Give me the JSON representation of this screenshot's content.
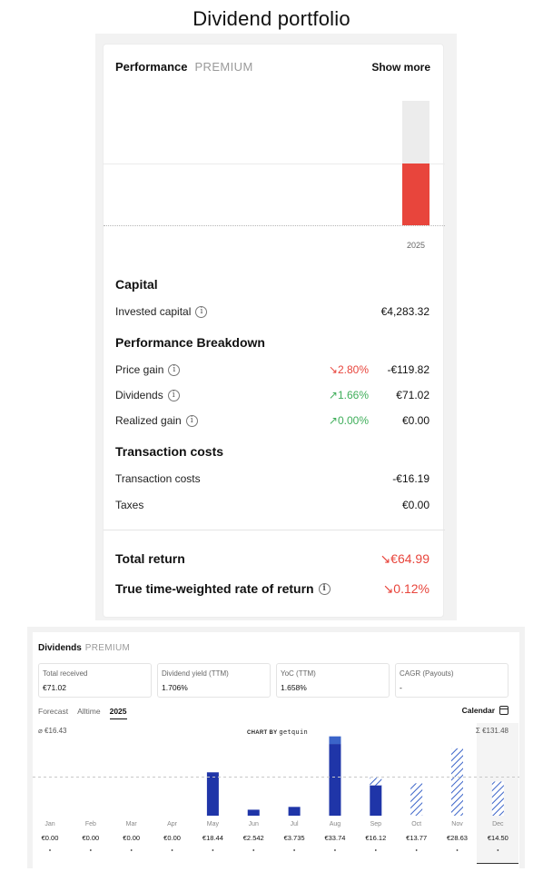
{
  "page_title": "Dividend portfolio",
  "performance": {
    "title": "Performance",
    "badge": "PREMIUM",
    "show_more": "Show more",
    "chart_year": "2025",
    "capital_heading": "Capital",
    "invested_capital_label": "Invested capital",
    "invested_capital_value": "€4,283.32",
    "breakdown_heading": "Performance Breakdown",
    "price_gain_label": "Price gain",
    "price_gain_pct": "↘2.80%",
    "price_gain_value": "-€119.82",
    "dividends_label": "Dividends",
    "dividends_pct": "↗1.66%",
    "dividends_value": "€71.02",
    "realized_gain_label": "Realized gain",
    "realized_gain_pct": "↗0.00%",
    "realized_gain_value": "€0.00",
    "tx_heading": "Transaction costs",
    "tx_costs_label": "Transaction costs",
    "tx_costs_value": "-€16.19",
    "taxes_label": "Taxes",
    "taxes_value": "€0.00",
    "total_return_label": "Total return",
    "total_return_value": "↘€64.99",
    "ttwror_label": "True time-weighted rate of return",
    "ttwror_value": "↘0.12%",
    "colors": {
      "negative": "#e8453c",
      "positive": "#3fae5a",
      "bar_red": "#e8453c",
      "bar_bg": "#ececec"
    }
  },
  "dividends": {
    "title": "Dividends",
    "badge": "PREMIUM",
    "stats": [
      {
        "label": "Total received",
        "value": "€71.02"
      },
      {
        "label": "Dividend yield (TTM)",
        "value": "1.706%"
      },
      {
        "label": "YoC (TTM)",
        "value": "1.658%"
      },
      {
        "label": "CAGR (Payouts)",
        "value": "-"
      }
    ],
    "tabs": [
      "Forecast",
      "Alltime",
      "2025"
    ],
    "active_tab": "2025",
    "calendar_label": "Calendar",
    "average_label": "⌀ €16.43",
    "chart_by_label": "CHART BY",
    "chart_by_brand": "getquin",
    "sum_label": "Σ €131.48",
    "icons": [
      "info-icon",
      "calendar-icon"
    ]
  },
  "chart_data": {
    "type": "bar",
    "categories": [
      "Jan",
      "Feb",
      "Mar",
      "Apr",
      "May",
      "Jun",
      "Jul",
      "Aug",
      "Sep",
      "Oct",
      "Nov",
      "Dec"
    ],
    "value_labels": [
      "€0.00",
      "€0.00",
      "€0.00",
      "€0.00",
      "€18.44",
      "€2.542",
      "€3.735",
      "€33.74",
      "€16.12",
      "€13.77",
      "€28.63",
      "€14.50"
    ],
    "series": [
      {
        "values": [
          0,
          0,
          0,
          0,
          18.44,
          2.542,
          3.735,
          30.5,
          12.9,
          0,
          0,
          0
        ]
      },
      {
        "values": [
          0,
          0,
          0,
          0,
          0,
          0,
          0,
          3.24,
          0,
          0,
          0,
          0
        ]
      },
      {
        "values": [
          0,
          0,
          0,
          0,
          0,
          0,
          0,
          0,
          3.22,
          13.77,
          28.63,
          14.5
        ]
      }
    ],
    "average": 16.43,
    "ylim": [
      0,
      34
    ],
    "colors": [
      "#1f35a8",
      "#3b64c9",
      "#3b64c9"
    ]
  }
}
